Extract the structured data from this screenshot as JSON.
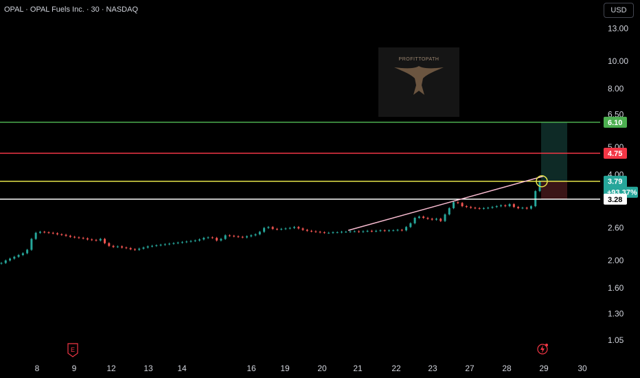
{
  "header": {
    "title": "OPAL · OPAL Fuels Inc. · 30 · NASDAQ",
    "currency_label": "USD"
  },
  "watermark": {
    "text": "PROFITTOPATH"
  },
  "colors": {
    "up": "#26a69a",
    "down": "#ef5350",
    "target_line": "#4caf50",
    "stop_line": "#f23645",
    "yellow_line": "#e5e54a",
    "entry_line": "#ffffff",
    "trend_line": "#f8bbd0",
    "profit_zone": "#0e2a26",
    "loss_zone": "#3a1517"
  },
  "chart_data": {
    "type": "candlestick",
    "y_scale": "log",
    "ylim": [
      0.95,
      15
    ],
    "y_ticks": [
      "13.00",
      "10.00",
      "8.00",
      "6.50",
      "5.00",
      "4.00",
      "2.60",
      "2.00",
      "1.60",
      "1.30",
      "1.05"
    ],
    "x_ticks": [
      "8",
      "9",
      "12",
      "13",
      "14",
      "16",
      "19",
      "20",
      "21",
      "22",
      "23",
      "27",
      "28",
      "29",
      "30"
    ],
    "price_levels": [
      {
        "name": "target",
        "value": 6.1,
        "label": "6.10",
        "color": "#4caf50"
      },
      {
        "name": "stop",
        "value": 4.75,
        "label": "4.75",
        "color": "#f23645"
      },
      {
        "name": "current",
        "value": 3.79,
        "label": "3.79",
        "sublabel": "+93.37%",
        "color": "#e5e54a"
      },
      {
        "name": "entry",
        "value": 3.28,
        "label": "3.28",
        "color": "#ffffff"
      }
    ],
    "trend_line": {
      "from_x": "21",
      "from_value": 2.55,
      "to_x": "29",
      "to_value": 3.95
    },
    "closes": [
      1.96,
      2.0,
      2.03,
      2.06,
      2.09,
      2.12,
      2.18,
      2.38,
      2.5,
      2.52,
      2.51,
      2.5,
      2.49,
      2.47,
      2.46,
      2.44,
      2.42,
      2.41,
      2.4,
      2.39,
      2.37,
      2.36,
      2.35,
      2.38,
      2.3,
      2.25,
      2.23,
      2.24,
      2.22,
      2.21,
      2.19,
      2.18,
      2.2,
      2.22,
      2.24,
      2.25,
      2.26,
      2.27,
      2.28,
      2.29,
      2.3,
      2.31,
      2.32,
      2.33,
      2.34,
      2.35,
      2.37,
      2.4,
      2.41,
      2.4,
      2.35,
      2.38,
      2.45,
      2.44,
      2.43,
      2.42,
      2.41,
      2.43,
      2.45,
      2.47,
      2.52,
      2.6,
      2.62,
      2.58,
      2.57,
      2.58,
      2.59,
      2.6,
      2.62,
      2.59,
      2.56,
      2.54,
      2.53,
      2.52,
      2.51,
      2.5,
      2.5,
      2.51,
      2.51,
      2.52,
      2.52,
      2.53,
      2.53,
      2.52,
      2.53,
      2.54,
      2.53,
      2.54,
      2.55,
      2.54,
      2.55,
      2.55,
      2.56,
      2.55,
      2.62,
      2.7,
      2.82,
      2.85,
      2.82,
      2.8,
      2.78,
      2.8,
      2.75,
      2.9,
      3.05,
      3.2,
      3.18,
      3.1,
      3.08,
      3.06,
      3.05,
      3.04,
      3.05,
      3.06,
      3.08,
      3.1,
      3.12,
      3.1,
      3.15,
      3.08,
      3.05,
      3.06,
      3.04,
      3.1,
      3.5,
      3.79
    ]
  }
}
